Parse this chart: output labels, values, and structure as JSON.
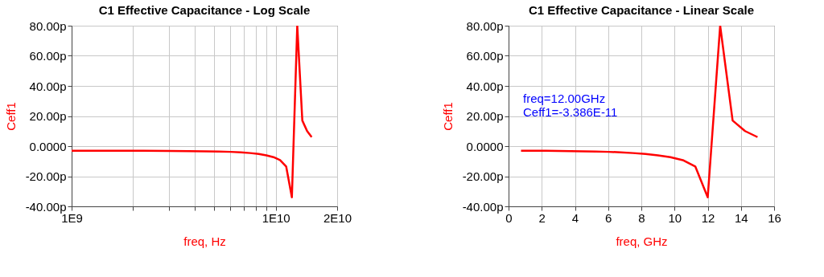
{
  "chart_data": [
    {
      "type": "line",
      "title": "C1 Effective Capacitance - Log Scale",
      "xlabel": "freq, Hz",
      "ylabel": "Ceff1",
      "log": "x",
      "x": [
        1000000000,
        1500000000,
        2250000000,
        3000000000,
        3750000000,
        4500000000,
        5250000000,
        6000000000,
        6750000000,
        7500000000,
        8250000000,
        9000000000,
        9750000000,
        10500000000,
        11250000000,
        12000000000,
        12750000000,
        13500000000,
        14250000000,
        15000000000
      ],
      "series": [
        {
          "color": "#ff0000",
          "values": [
            -3,
            -3,
            -3.1,
            -3.2,
            -3.3,
            -3.5,
            -3.6,
            -3.8,
            -4.1,
            -4.6,
            -5.2,
            -6.1,
            -7.3,
            -9.3,
            -13.5,
            -34,
            80,
            17,
            10,
            6
          ]
        }
      ],
      "xlim": [
        1000000000,
        20000000000
      ],
      "xticks": [
        {
          "value": 1000000000,
          "label": "1E9"
        },
        {
          "value": 2000000000,
          "label": null
        },
        {
          "value": 3000000000,
          "label": null
        },
        {
          "value": 4000000000,
          "label": null
        },
        {
          "value": 5000000000,
          "label": null
        },
        {
          "value": 6000000000,
          "label": null
        },
        {
          "value": 7000000000,
          "label": null
        },
        {
          "value": 8000000000,
          "label": null
        },
        {
          "value": 9000000000,
          "label": null
        },
        {
          "value": 10000000000,
          "label": "1E10"
        },
        {
          "value": 20000000000,
          "label": "2E10"
        }
      ],
      "ylim": [
        -40,
        80
      ],
      "yticks": [
        {
          "value": -40,
          "label": "-40.00p"
        },
        {
          "value": -20,
          "label": "-20.00p"
        },
        {
          "value": 0,
          "label": "0.0000"
        },
        {
          "value": 20,
          "label": "20.00p"
        },
        {
          "value": 40,
          "label": "40.00p"
        },
        {
          "value": 60,
          "label": "60.00p"
        },
        {
          "value": 80,
          "label": "80.00p"
        }
      ],
      "grid": true,
      "marker": "none",
      "line_style": "solid"
    },
    {
      "type": "line",
      "title": "C1 Effective Capacitance - Linear Scale",
      "xlabel": "freq, GHz",
      "ylabel": "Ceff1",
      "x": [
        0.75,
        1.5,
        2.25,
        3,
        3.75,
        4.5,
        5.25,
        6,
        6.75,
        7.5,
        8.25,
        9,
        9.75,
        10.5,
        11.25,
        12,
        12.75,
        13.5,
        14.25,
        15
      ],
      "series": [
        {
          "color": "#ff0000",
          "values": [
            -3,
            -3,
            -3.1,
            -3.2,
            -3.3,
            -3.5,
            -3.6,
            -3.8,
            -4.1,
            -4.6,
            -5.2,
            -6.1,
            -7.3,
            -9.3,
            -13.5,
            -34,
            80,
            17,
            10,
            6
          ]
        }
      ],
      "xlim": [
        0,
        16
      ],
      "xticks": [
        0,
        2,
        4,
        6,
        8,
        10,
        12,
        14,
        16
      ],
      "ylim": [
        -40,
        80
      ],
      "yticks": [
        {
          "value": -40,
          "label": "-40.00p"
        },
        {
          "value": -20,
          "label": "-20.00p"
        },
        {
          "value": 0,
          "label": "0.0000"
        },
        {
          "value": 20,
          "label": "20.00p"
        },
        {
          "value": 40,
          "label": "40.00p"
        },
        {
          "value": 60,
          "label": "60.00p"
        },
        {
          "value": 80,
          "label": "80.00p"
        }
      ],
      "annotations": [
        "freq=12.00GHz\nCeff1=-3.386E-11"
      ],
      "grid": true,
      "marker": "none",
      "line_style": "solid"
    }
  ]
}
